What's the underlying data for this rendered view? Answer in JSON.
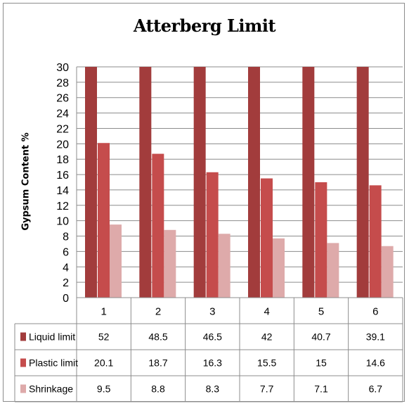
{
  "chart_data": {
    "type": "bar",
    "title": "Atterberg Limit",
    "ylabel": "Gypsum Content %",
    "xlabel": "",
    "ylim": [
      0,
      30
    ],
    "yticks": [
      0,
      2,
      4,
      6,
      8,
      10,
      12,
      14,
      16,
      18,
      20,
      22,
      24,
      26,
      28,
      30
    ],
    "grid": true,
    "legend": "data-table",
    "categories": [
      "1",
      "2",
      "3",
      "4",
      "5",
      "6"
    ],
    "series": [
      {
        "name": "Liquid limit",
        "values": [
          52,
          48.5,
          46.5,
          42,
          40.7,
          39.1
        ],
        "labels": [
          "52",
          "48.5",
          "46.5",
          "42",
          "40.7",
          "39.1"
        ],
        "color": "#a23c3c"
      },
      {
        "name": "Plastic limit",
        "values": [
          20.1,
          18.7,
          16.3,
          15.5,
          15,
          14.6
        ],
        "labels": [
          "20.1",
          "18.7",
          "16.3",
          "15.5",
          "15",
          "14.6"
        ],
        "color": "#c54c4c"
      },
      {
        "name": "Shrinkage",
        "values": [
          9.5,
          8.8,
          8.3,
          7.7,
          7.1,
          6.7
        ],
        "labels": [
          "9.5",
          "8.8",
          "8.3",
          "7.7",
          "7.1",
          "6.7"
        ],
        "color": "#deaaaa"
      }
    ]
  }
}
